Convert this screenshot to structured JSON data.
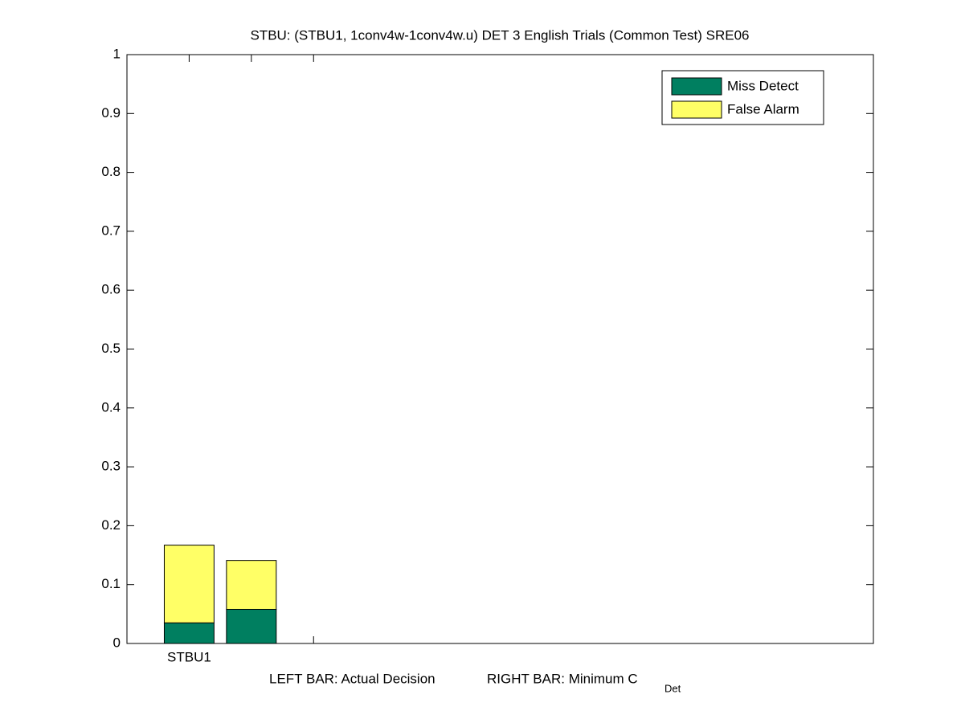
{
  "chart_data": {
    "type": "stacked_bar",
    "title": "STBU: (STBU1, 1conv4w-1conv4w.u) DET 3 English Trials (Common Test) SRE06",
    "xlabel": {
      "left": "LEFT BAR: Actual Decision",
      "right": "RIGHT BAR: Minimum C",
      "right_subscript": "Det"
    },
    "categories": [
      "STBU1",
      null,
      null
    ],
    "x": [
      1,
      2,
      3
    ],
    "xlim": [
      0,
      12
    ],
    "series": [
      {
        "name": "Miss Detect",
        "color": "#007f60",
        "values": [
          0.035,
          0.058,
          null
        ]
      },
      {
        "name": "False Alarm",
        "color": "#ffff66",
        "values": [
          0.132,
          0.083,
          null
        ]
      }
    ],
    "ylim": [
      0,
      1
    ],
    "yticks": [
      0,
      0.1,
      0.2,
      0.3,
      0.4,
      0.5,
      0.6,
      0.7,
      0.8,
      0.9,
      1
    ],
    "grid": false,
    "legend": "northeast"
  }
}
